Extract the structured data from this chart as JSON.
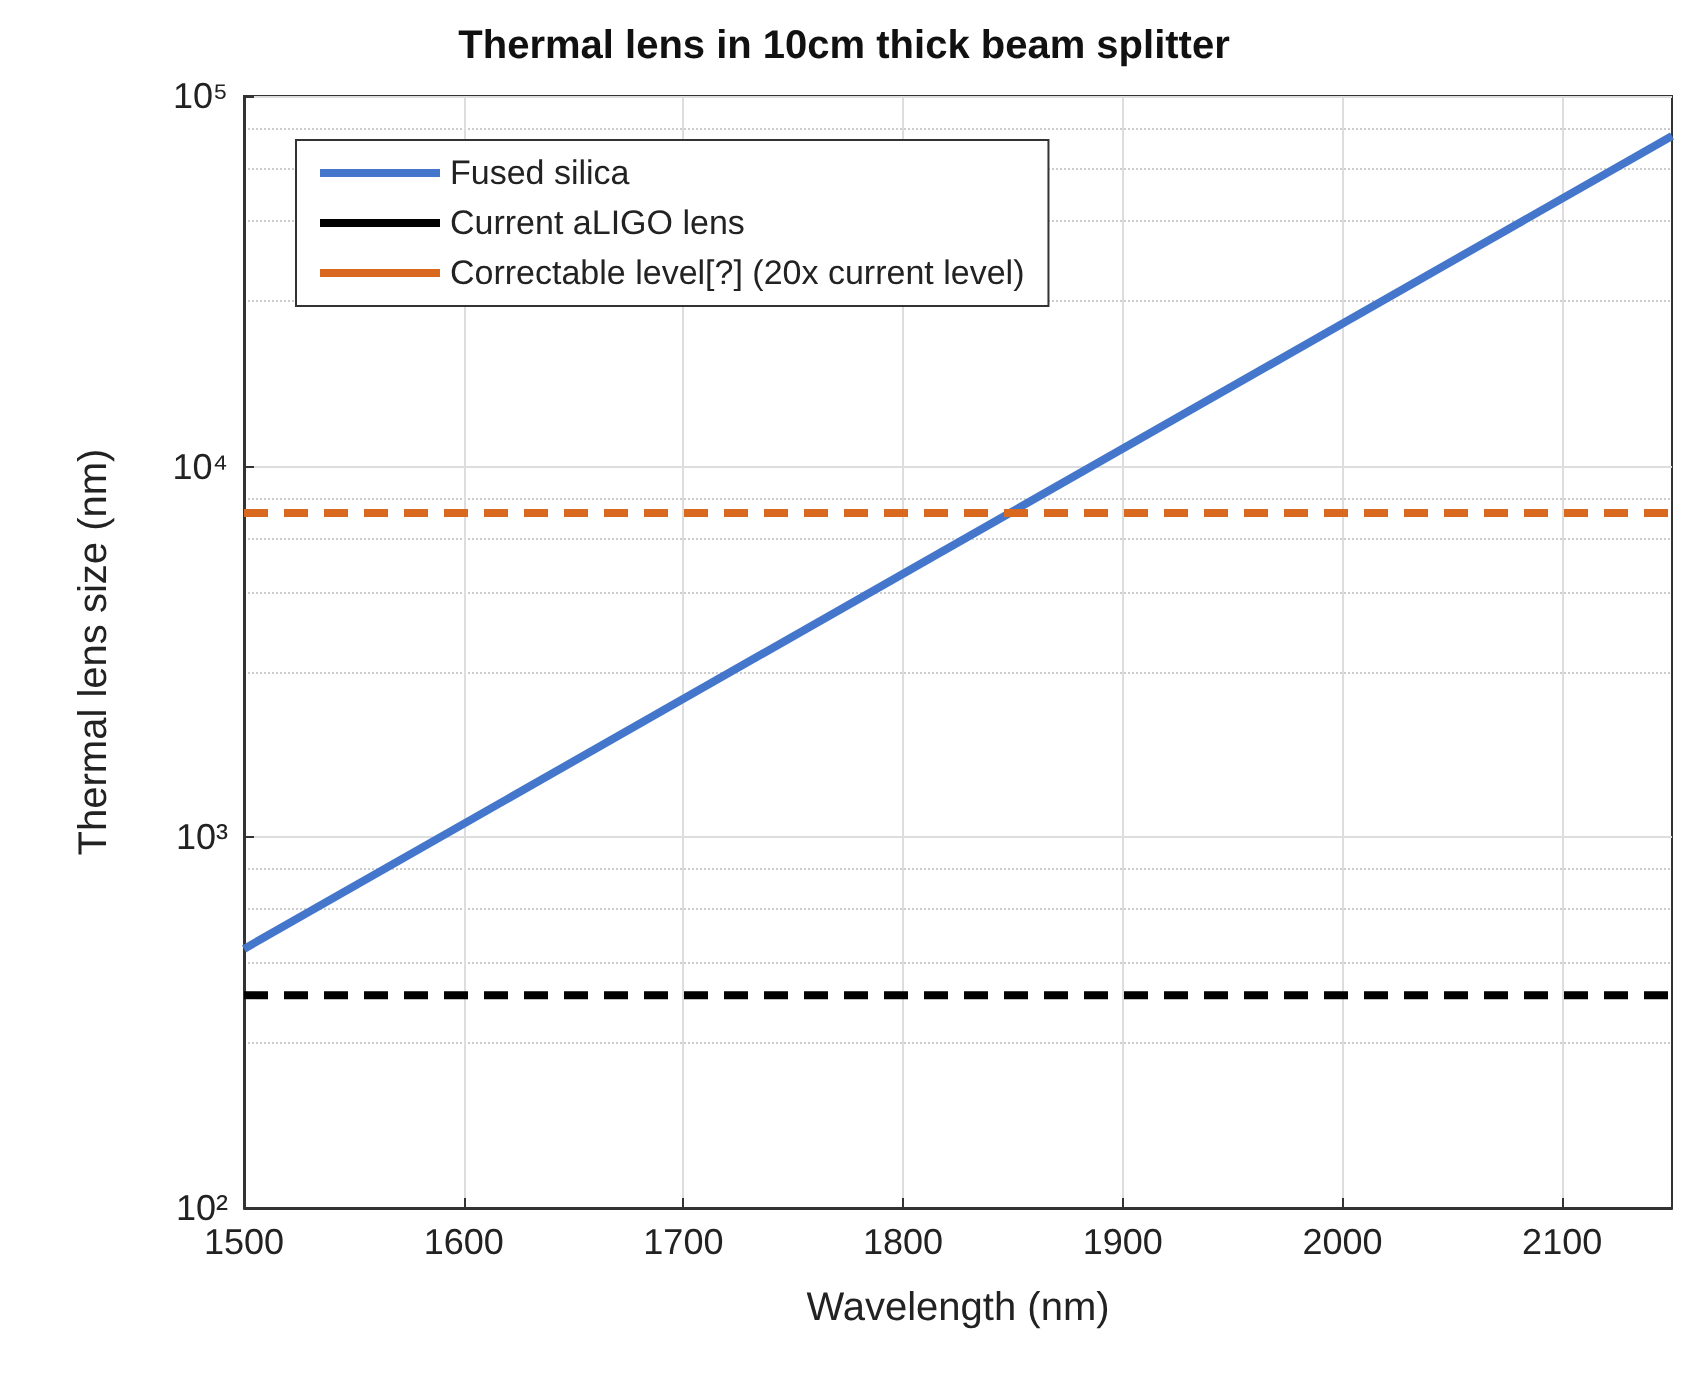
{
  "chart_data": {
    "type": "line",
    "title": "Thermal lens in 10cm thick beam splitter",
    "xlabel": "Wavelength (nm)",
    "ylabel": "Thermal lens size (nm)",
    "x": [
      1500,
      2150
    ],
    "series": [
      {
        "name": "Fused silica",
        "color": "#4477cc",
        "values": [
          500,
          78000
        ],
        "line_style": "solid"
      },
      {
        "name": "Current aLIGO lens",
        "color": "#000000",
        "values": [
          375,
          375
        ],
        "line_style": "dashed"
      },
      {
        "name": "Correctable level[?] (20x current level)",
        "color": "#d9691f",
        "values": [
          7500,
          7500
        ],
        "line_style": "dashed"
      }
    ],
    "xlim": [
      1500,
      2150
    ],
    "xticks": [
      1500,
      1600,
      1700,
      1800,
      1900,
      2000,
      2100
    ],
    "ylim": [
      100,
      100000
    ],
    "yticks": [
      {
        "value": 100,
        "label": "10²"
      },
      {
        "value": 1000,
        "label": "10³"
      },
      {
        "value": 10000,
        "label": "10⁴"
      },
      {
        "value": 100000,
        "label": "10⁵"
      }
    ],
    "log": "y",
    "grid": true,
    "legend": "top left",
    "marker": "none"
  }
}
